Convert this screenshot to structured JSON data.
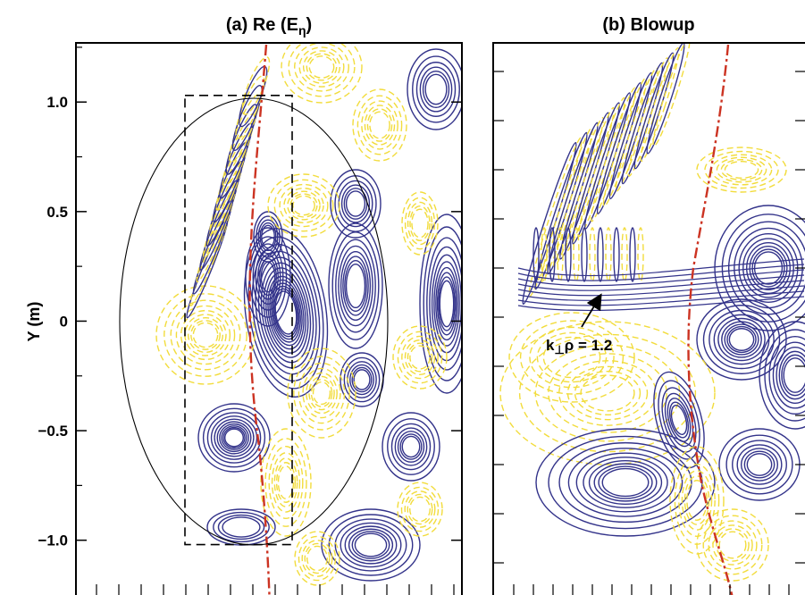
{
  "chart_data": [
    {
      "panel": "a",
      "type": "contour",
      "title_main": "(a) Re (E",
      "title_sub": "η",
      "title_close": ")",
      "ylabel": "Y (m)",
      "ylim": [
        -1.25,
        1.27
      ],
      "yticks": [
        1.0,
        0.5,
        0,
        -0.5,
        -1.0
      ],
      "yticklabels": [
        "1.0",
        "0.5",
        "0",
        "−0.5",
        "−1.0"
      ],
      "grid": false,
      "legend": "none",
      "series": [
        {
          "style": "solid",
          "color": "#33338a"
        },
        {
          "style": "dashed",
          "color": "#f2dc3c"
        },
        {
          "style": "dash-dot",
          "color": "#cc3322"
        }
      ],
      "overlays": [
        {
          "kind": "ellipse",
          "color": "#000000",
          "center": [
            0,
            0.0
          ],
          "semi_axes_y": 1.04
        },
        {
          "kind": "dashed-rectangle",
          "color": "#000000",
          "y_range": [
            -1.02,
            1.03
          ]
        }
      ]
    },
    {
      "panel": "b",
      "type": "contour",
      "title": "(b) Blowup",
      "grid": false,
      "legend": "none",
      "annotation": {
        "text_main": "k",
        "text_sub": "⊥",
        "text_rest": "ρ = 1.2",
        "arrow": true
      }
    }
  ],
  "colors": {
    "positive": "#33338a",
    "negative": "#f2dc3c",
    "resonance": "#cc3322",
    "frame": "#000000"
  }
}
